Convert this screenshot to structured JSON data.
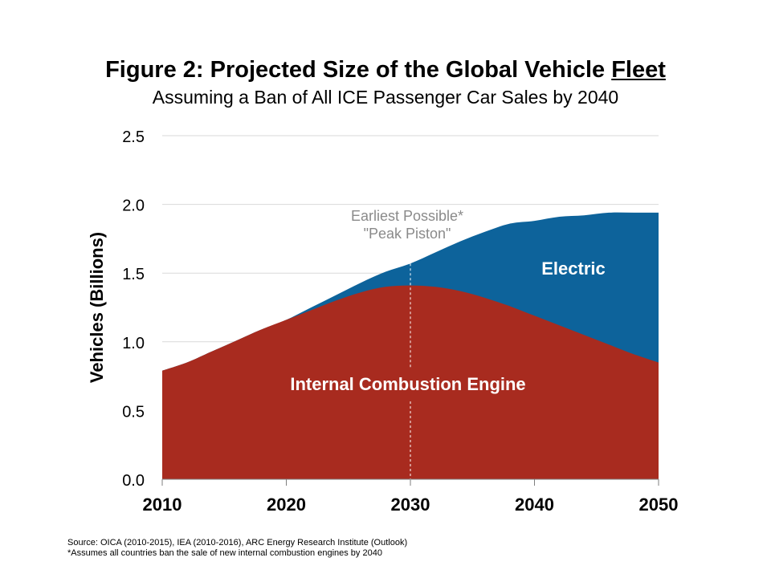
{
  "title_main": "Figure 2: Projected Size of the Global Vehicle ",
  "title_underlined": "Fleet",
  "subtitle": "Assuming a Ban of All ICE Passenger Car Sales by 2040",
  "colors": {
    "ice": "#a82b1f",
    "electric": "#0d639b",
    "grid": "#d9d9d9",
    "annotation": "#8a8a8a"
  },
  "chart_data": {
    "type": "area",
    "stacked": true,
    "ylabel": "Vehicles (Billions)",
    "xlabel": "",
    "ylim": [
      0,
      2.5
    ],
    "xlim": [
      2010,
      2050
    ],
    "yticks": [
      "0.0",
      "0.5",
      "1.0",
      "1.5",
      "2.0",
      "2.5"
    ],
    "xticks": [
      "2010",
      "2020",
      "2030",
      "2040",
      "2050"
    ],
    "grid": true,
    "x": [
      2010,
      2012,
      2014,
      2016,
      2018,
      2020,
      2022,
      2024,
      2026,
      2028,
      2030,
      2032,
      2034,
      2036,
      2038,
      2040,
      2042,
      2044,
      2046,
      2048,
      2050
    ],
    "series": [
      {
        "name": "Internal Combustion Engine",
        "values": [
          0.79,
          0.85,
          0.93,
          1.01,
          1.09,
          1.16,
          1.23,
          1.3,
          1.36,
          1.4,
          1.41,
          1.4,
          1.37,
          1.32,
          1.26,
          1.19,
          1.12,
          1.05,
          0.98,
          0.91,
          0.85
        ]
      },
      {
        "name": "Electric",
        "values": [
          0.0,
          0.0,
          0.0,
          0.0,
          0.0,
          0.0,
          0.02,
          0.04,
          0.07,
          0.11,
          0.16,
          0.25,
          0.36,
          0.48,
          0.6,
          0.69,
          0.79,
          0.87,
          0.96,
          1.03,
          1.09
        ]
      }
    ],
    "annotations": [
      {
        "x": 2030,
        "lines": [
          "Earliest Possible*",
          "\"Peak Piston\""
        ]
      }
    ]
  },
  "source_lines": [
    "Source: OICA (2010-2015), IEA (2010-2016), ARC Energy Research Institute (Outlook)",
    "*Assumes all countries ban the sale of new internal combustion engines by 2040"
  ]
}
